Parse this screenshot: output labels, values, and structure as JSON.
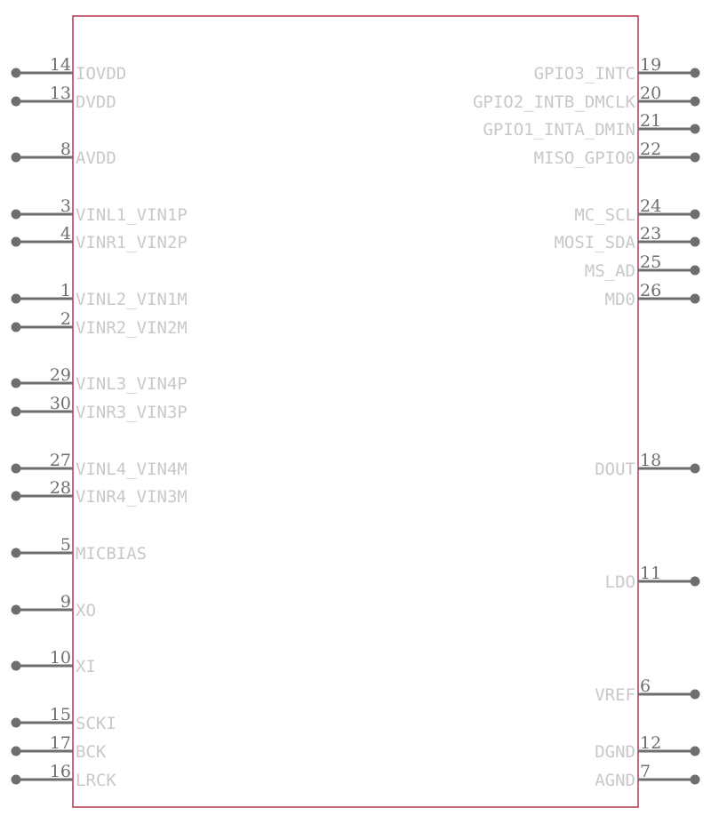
{
  "colors": {
    "body_outline": "#b5354f",
    "pin": "#6e6e6e",
    "pin_name": "#c8c8c8"
  },
  "left_pins": [
    {
      "number": "14",
      "name": "IOVDD"
    },
    {
      "number": "13",
      "name": "DVDD"
    },
    {
      "number": "8",
      "name": "AVDD"
    },
    {
      "number": "3",
      "name": "VINL1_VIN1P"
    },
    {
      "number": "4",
      "name": "VINR1_VIN2P"
    },
    {
      "number": "1",
      "name": "VINL2_VIN1M"
    },
    {
      "number": "2",
      "name": "VINR2_VIN2M"
    },
    {
      "number": "29",
      "name": "VINL3_VIN4P"
    },
    {
      "number": "30",
      "name": "VINR3_VIN3P"
    },
    {
      "number": "27",
      "name": "VINL4_VIN4M"
    },
    {
      "number": "28",
      "name": "VINR4_VIN3M"
    },
    {
      "number": "5",
      "name": "MICBIAS"
    },
    {
      "number": "9",
      "name": "XO"
    },
    {
      "number": "10",
      "name": "XI"
    },
    {
      "number": "15",
      "name": "SCKI"
    },
    {
      "number": "17",
      "name": "BCK"
    },
    {
      "number": "16",
      "name": "LRCK"
    }
  ],
  "right_pins": [
    {
      "number": "19",
      "name": "GPIO3_INTC"
    },
    {
      "number": "20",
      "name": "GPIO2_INTB_DMCLK"
    },
    {
      "number": "21",
      "name": "GPIO1_INTA_DMIN"
    },
    {
      "number": "22",
      "name": "MISO_GPIO0"
    },
    {
      "number": "24",
      "name": "MC_SCL"
    },
    {
      "number": "23",
      "name": "MOSI_SDA"
    },
    {
      "number": "25",
      "name": "MS_AD"
    },
    {
      "number": "26",
      "name": "MD0"
    },
    {
      "number": "18",
      "name": "DOUT"
    },
    {
      "number": "11",
      "name": "LDO"
    },
    {
      "number": "6",
      "name": "VREF"
    },
    {
      "number": "12",
      "name": "DGND"
    },
    {
      "number": "7",
      "name": "AGND"
    }
  ]
}
